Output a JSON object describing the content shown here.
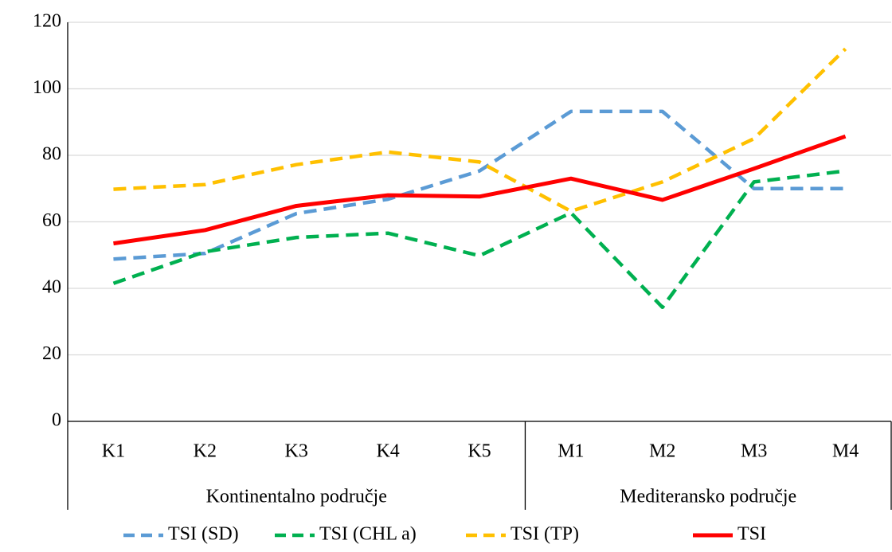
{
  "chart_data": {
    "type": "line",
    "groups": [
      {
        "name": "Kontinentalno područje",
        "categories": [
          "K1",
          "K2",
          "K3",
          "K4",
          "K5"
        ]
      },
      {
        "name": "Mediteransko područje",
        "categories": [
          "M1",
          "M2",
          "M3",
          "M4"
        ]
      }
    ],
    "series": [
      {
        "name": "TSI (SD)",
        "color": "#5b9bd5",
        "line_style": "dashed",
        "values": [
          48.8,
          50.5,
          62.5,
          66.8,
          75.3,
          93.2,
          93.2,
          70,
          70
        ]
      },
      {
        "name": "TSI (CHL a)",
        "color": "#00b050",
        "line_style": "dashed",
        "values": [
          41.5,
          51,
          55.3,
          56.6,
          49.8,
          62.7,
          34.3,
          72,
          75.3
        ]
      },
      {
        "name": "TSI (TP)",
        "color": "#ffc000",
        "line_style": "dashed",
        "values": [
          69.8,
          71.2,
          77.2,
          81,
          78,
          63.2,
          72,
          85,
          112
        ]
      },
      {
        "name": "TSI",
        "color": "#ff0000",
        "line_style": "solid",
        "values": [
          53.5,
          57.5,
          64.8,
          68,
          67.6,
          73,
          66.6,
          76,
          85.7
        ]
      }
    ],
    "ylim": [
      0,
      120
    ],
    "yticks": [
      0,
      20,
      40,
      60,
      80,
      100,
      120
    ],
    "grid": true,
    "legend": "bottom"
  }
}
